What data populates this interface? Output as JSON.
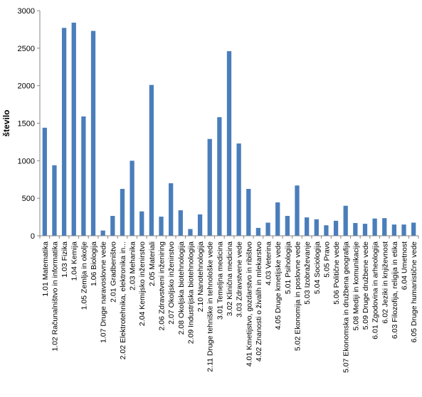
{
  "chart_data": {
    "type": "bar",
    "title": "",
    "xlabel": "",
    "ylabel": "število",
    "ylim": [
      0,
      3000
    ],
    "yticks": [
      0,
      500,
      1000,
      1500,
      2000,
      2500,
      3000
    ],
    "grid": false,
    "legend": "none",
    "bar_color": "#4a7ebb",
    "categories": [
      "1.01 Matematika",
      "1.02 Računalništvo in informatika",
      "1.03 Fizika",
      "1.04 Kemija",
      "1.05 Zemlja in okolje",
      "1.06 Biologija",
      "1.07 Druge naravoslovne vede",
      "2.01 Gradbeništvo",
      "2.02 Elektrotehnika, elektronika in...",
      "2.03 Mehanika",
      "2.04 Kemijsko inženirstvo",
      "2.05 Materiali",
      "2.06 Zdravstveni inženiring",
      "2.07 Okoljsko inženirstvo",
      "2.08 Okoljska biotehnologija",
      "2.09 Industrijska biotehnologija",
      "2.10 Nanotehnologija",
      "2.11 Druge tehniške in tehnološke vede",
      "3.01 Temeljna medicina",
      "3.02 Klinična medicina",
      "3.03 Zdravstvene vede",
      "4.01 Kmetijstvo, gozdarstvo in ribištvo",
      "4.02 Znanosti o živalih in mlekarstvo",
      "4.03 Veterina",
      "4.05 Druge kmetijske vede",
      "5.01 Psihologija",
      "5.02 Ekonomija in poslovne vede",
      "5.03 Izobraževanje",
      "5.04 Sociologija",
      "5.05 Pravo",
      "5.06 Politične vede",
      "5.07 Ekonomska in družbena geografija",
      "5.08 Mediji in komunikacije",
      "5.09 Druge družbene vede",
      "6.01 Zgodovina in arheologija",
      "6.02 Jeziki in književnost",
      "6.03 Filozofija, religija in etika",
      "6.04 Umetnost",
      "6.05 Druge humanistične vede"
    ],
    "values": [
      1440,
      940,
      2770,
      2840,
      1590,
      2730,
      70,
      265,
      625,
      1000,
      325,
      2010,
      255,
      700,
      340,
      90,
      285,
      1290,
      1580,
      2460,
      1230,
      625,
      105,
      175,
      445,
      265,
      670,
      245,
      220,
      140,
      200,
      400,
      170,
      160,
      230,
      235,
      150,
      150,
      175
    ]
  }
}
